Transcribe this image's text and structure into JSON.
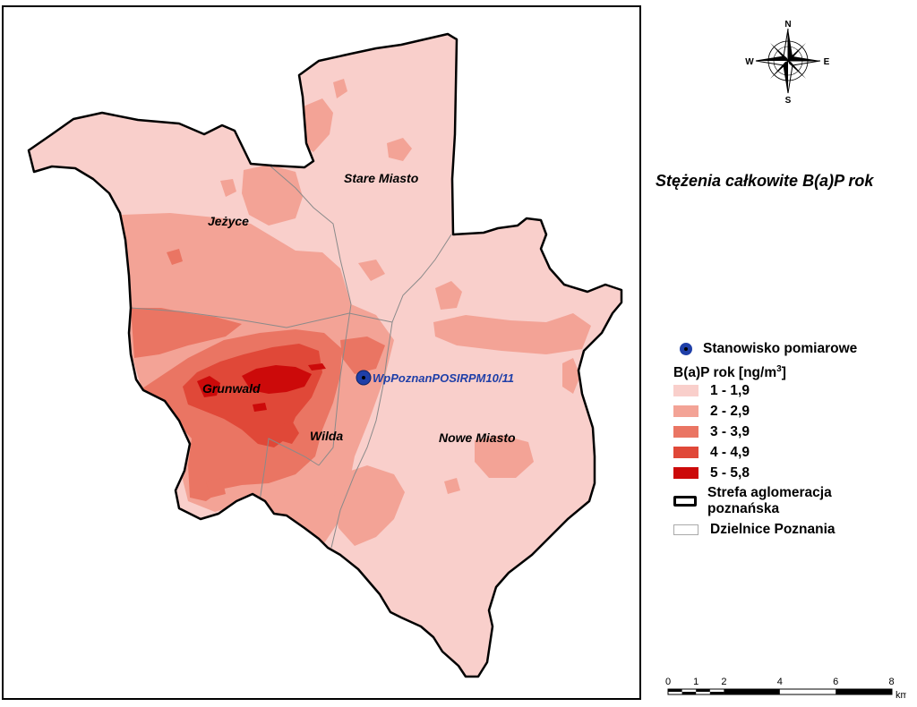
{
  "map": {
    "districts": [
      {
        "id": "stare-miasto",
        "label": "Stare Miasto"
      },
      {
        "id": "jezyce",
        "label": "Jeżyce"
      },
      {
        "id": "grunwald",
        "label": "Grunwald"
      },
      {
        "id": "wilda",
        "label": "Wilda"
      },
      {
        "id": "nowe-miasto",
        "label": "Nowe Miasto"
      }
    ],
    "station_label": "WpPoznanPOSIRPM10/11"
  },
  "compass": {
    "n": "N",
    "s": "S",
    "e": "E",
    "w": "W"
  },
  "title": "Stężenia całkowite B(a)P rok",
  "legend": {
    "station": "Stanowisko pomiarowe",
    "heading": "B(a)P rok [ng/m",
    "heading_sup": "3",
    "heading_end": "]",
    "classes": [
      {
        "label": "1 - 1,9",
        "color": "#f9cfcb"
      },
      {
        "label": "2 - 2,9",
        "color": "#f3a396"
      },
      {
        "label": "3 - 3,9",
        "color": "#ea7563"
      },
      {
        "label": "4 - 4,9",
        "color": "#e04838"
      },
      {
        "label": "5 - 5,8",
        "color": "#cc0a0a"
      }
    ],
    "boundary_line1": "Strefa aglomeracja",
    "boundary_line2": "poznańska",
    "districts": "Dzielnice Poznania"
  },
  "scale": {
    "ticks": [
      "0",
      "1",
      "2",
      "4",
      "6",
      "8"
    ],
    "unit": "km"
  }
}
